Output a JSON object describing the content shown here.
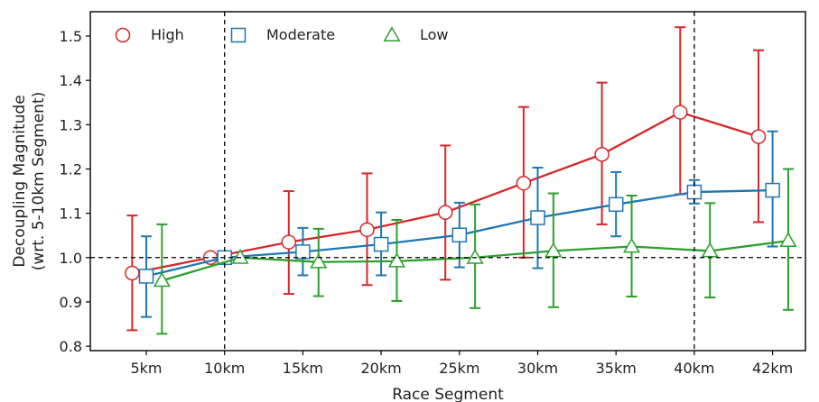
{
  "chart_data": {
    "type": "line",
    "categories": [
      "5km",
      "10km",
      "15km",
      "20km",
      "25km",
      "30km",
      "35km",
      "40km",
      "42km"
    ],
    "xlabel": "Race Segment",
    "ylabel_line1": "Decoupling Magnitude",
    "ylabel_line2": "(wrt. 5-10km Segment)",
    "ylim": [
      0.79,
      1.555
    ],
    "yticks": [
      0.8,
      0.9,
      1.0,
      1.1,
      1.2,
      1.3,
      1.4,
      1.5
    ],
    "ytick_labels": [
      "0.8",
      "0.9",
      "1.0",
      "1.1",
      "1.2",
      "1.3",
      "1.4",
      "1.5"
    ],
    "reference_line_y": 1.0,
    "vertical_reference_lines": [
      "10km",
      "40km"
    ],
    "grid": false,
    "legend_position": "top-left",
    "series": [
      {
        "name": "High",
        "marker": "circle",
        "color": "#d62728",
        "offset": -0.18,
        "values": [
          0.965,
          1.0,
          1.035,
          1.063,
          1.102,
          1.168,
          1.233,
          1.328,
          1.273
        ],
        "err_low": [
          0.836,
          1.0,
          0.918,
          0.938,
          0.95,
          1.0,
          1.075,
          1.143,
          1.08
        ],
        "err_high": [
          1.095,
          1.0,
          1.15,
          1.19,
          1.253,
          1.34,
          1.395,
          1.52,
          1.468
        ]
      },
      {
        "name": "Moderate",
        "marker": "square",
        "color": "#1f77b4",
        "offset": 0.0,
        "values": [
          0.958,
          1.0,
          1.013,
          1.03,
          1.051,
          1.09,
          1.12,
          1.148,
          1.152
        ],
        "err_low": [
          0.866,
          1.0,
          0.96,
          0.96,
          0.978,
          0.976,
          1.048,
          1.122,
          1.025
        ],
        "err_high": [
          1.048,
          1.0,
          1.067,
          1.102,
          1.124,
          1.203,
          1.193,
          1.175,
          1.285
        ]
      },
      {
        "name": "Low",
        "marker": "triangle",
        "color": "#2ca02c",
        "offset": 0.2,
        "values": [
          0.948,
          1.0,
          0.99,
          0.992,
          1.0,
          1.015,
          1.025,
          1.015,
          1.038
        ],
        "err_low": [
          0.828,
          1.0,
          0.913,
          0.902,
          0.886,
          0.888,
          0.912,
          0.91,
          0.882
        ],
        "err_high": [
          1.075,
          1.0,
          1.065,
          1.085,
          1.12,
          1.145,
          1.14,
          1.123,
          1.2
        ]
      }
    ]
  }
}
